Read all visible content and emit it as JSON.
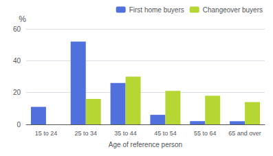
{
  "chart_data": {
    "type": "bar",
    "categories": [
      "15 to 24",
      "25 to 34",
      "35 to 44",
      "45 to 54",
      "55 to 64",
      "65 and over"
    ],
    "series": [
      {
        "name": "First home buyers",
        "values": [
          11,
          52,
          26,
          6,
          2,
          2
        ]
      },
      {
        "name": "Changeover buyers",
        "values": [
          0,
          16,
          30,
          21,
          18,
          14
        ]
      }
    ],
    "xlabel": "Age of reference person",
    "ylabel": "%",
    "ylim": [
      0,
      60
    ],
    "yticks": [
      0,
      20,
      40,
      60
    ],
    "grid": true,
    "legend": "upper right"
  }
}
